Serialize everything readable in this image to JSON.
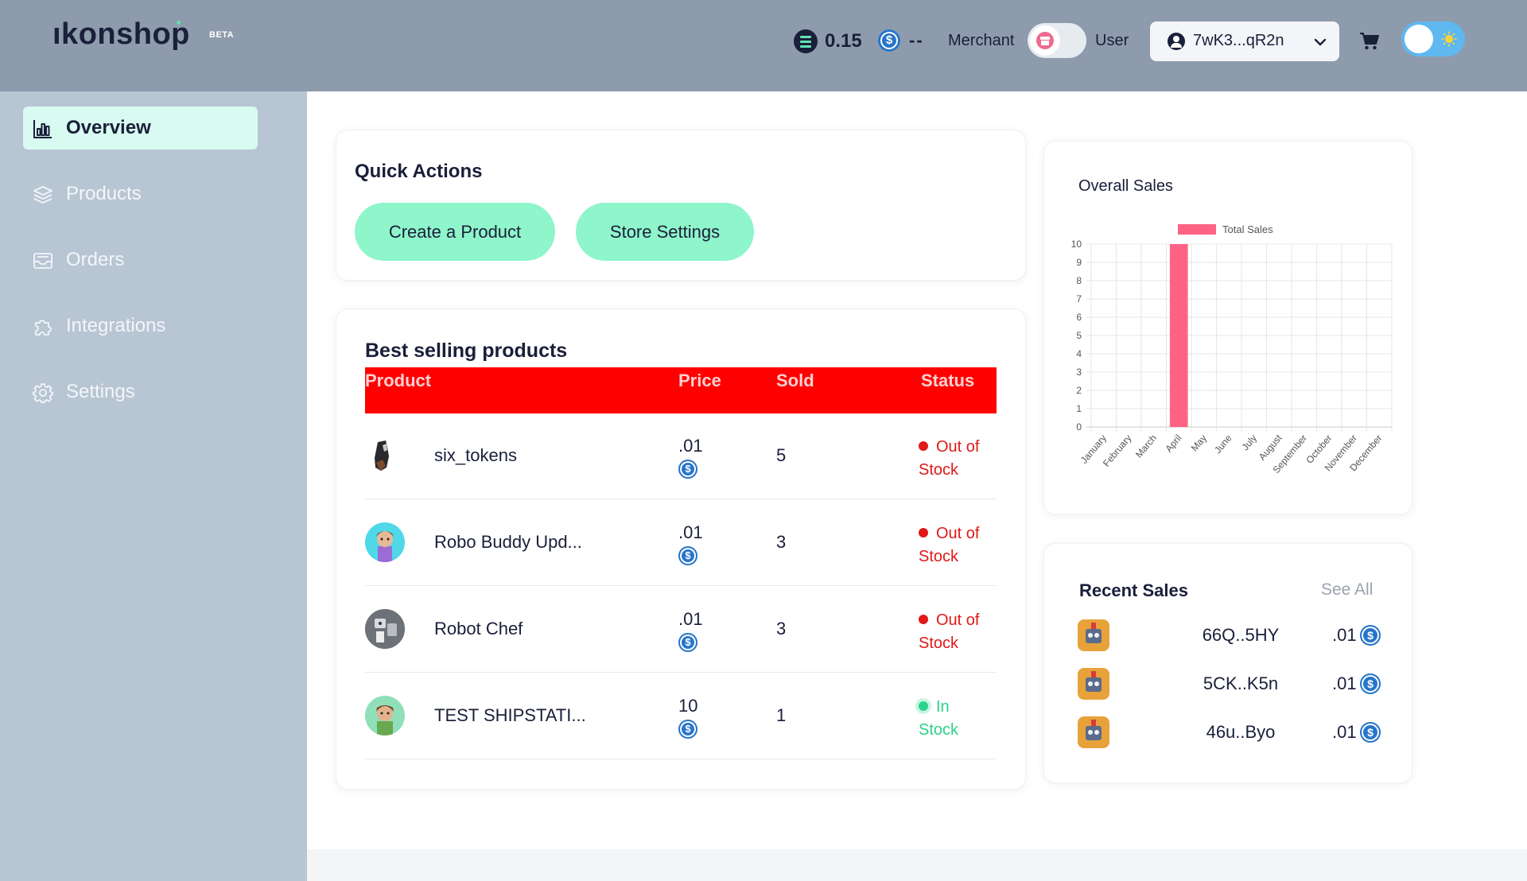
{
  "header": {
    "logo": "ıkonshop",
    "beta_badge": "BETA",
    "sol_balance": "0.15",
    "usdc_balance": "--",
    "merchant_label": "Merchant",
    "user_label": "User",
    "wallet_address": "7wK3...qR2n",
    "colors": {
      "background": "#8e9bac",
      "accent": "#5fe3b4",
      "usdc": "#2775ca"
    }
  },
  "sidebar": {
    "items": [
      {
        "label": "Overview",
        "icon": "bar-chart-icon",
        "active": true
      },
      {
        "label": "Products",
        "icon": "layers-icon",
        "active": false
      },
      {
        "label": "Orders",
        "icon": "inbox-icon",
        "active": false
      },
      {
        "label": "Integrations",
        "icon": "puzzle-icon",
        "active": false
      },
      {
        "label": "Settings",
        "icon": "gear-icon",
        "active": false
      }
    ]
  },
  "quick_actions": {
    "title": "Quick Actions",
    "create_label": "Create a Product",
    "settings_label": "Store Settings"
  },
  "best_selling": {
    "title": "Best selling products",
    "columns": [
      "Product",
      "Price",
      "Sold",
      "Status"
    ],
    "rows": [
      {
        "name": "six_tokens",
        "price": ".01",
        "sold": "5",
        "status_line1": "Out of",
        "status_line2": "Stock",
        "in_stock": false
      },
      {
        "name": "Robo Buddy Upd...",
        "price": ".01",
        "sold": "3",
        "status_line1": "Out of",
        "status_line2": "Stock",
        "in_stock": false
      },
      {
        "name": "Robot Chef",
        "price": ".01",
        "sold": "3",
        "status_line1": "Out of",
        "status_line2": "Stock",
        "in_stock": false
      },
      {
        "name": "TEST SHIPSTATI...",
        "price": "10",
        "sold": "1",
        "status_line1": "In",
        "status_line2": "Stock",
        "in_stock": true
      }
    ]
  },
  "chart": {
    "title": "Overall Sales"
  },
  "chart_data": {
    "type": "bar",
    "legend": "Total Sales",
    "legend_position": "top-center",
    "categories": [
      "January",
      "February",
      "March",
      "April",
      "May",
      "June",
      "July",
      "August",
      "September",
      "October",
      "November",
      "December"
    ],
    "series": [
      {
        "name": "Total Sales",
        "values": [
          0,
          0,
          0,
          10,
          0,
          0,
          0,
          0,
          0,
          0,
          0,
          0
        ],
        "color": "#ff6384"
      }
    ],
    "ylim": [
      0,
      10
    ],
    "yticks": [
      "0",
      "1",
      "2",
      "3",
      "4",
      "5",
      "6",
      "7",
      "8",
      "9",
      "10"
    ],
    "grid": true
  },
  "recent_sales": {
    "title": "Recent Sales",
    "see_all": "See All",
    "items": [
      {
        "address": "66Q..5HY",
        "amount": ".01"
      },
      {
        "address": "5CK..K5n",
        "amount": ".01"
      },
      {
        "address": "46u..Byo",
        "amount": ".01"
      }
    ]
  }
}
